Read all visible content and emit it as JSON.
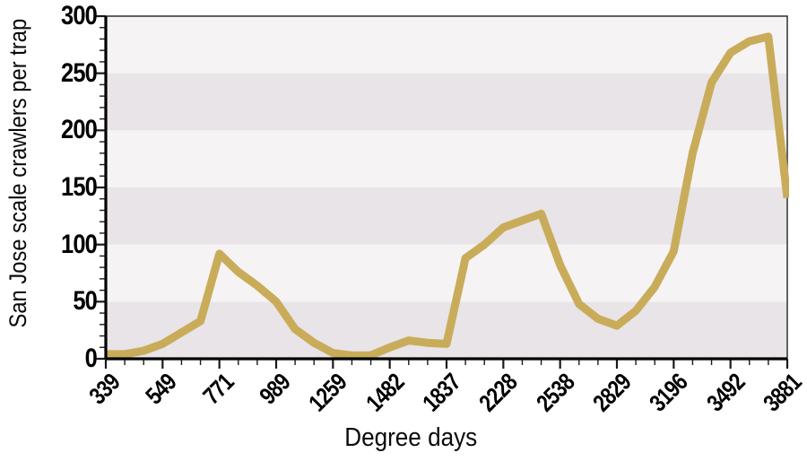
{
  "figure": {
    "y_axis_title": "San Jose scale crawlers per trap",
    "x_axis_title": "Degree days"
  },
  "chart_data": {
    "type": "line",
    "title": "",
    "xlabel": "Degree days",
    "ylabel": "San Jose scale crawlers per trap",
    "x_tick_labels": [
      "339",
      "549",
      "771",
      "989",
      "1259",
      "1482",
      "1837",
      "2228",
      "2538",
      "2829",
      "3196",
      "3492",
      "3881"
    ],
    "y_tick_labels": [
      "0",
      "50",
      "100",
      "150",
      "200",
      "250",
      "300"
    ],
    "ylim": [
      0,
      300
    ],
    "y_major_step": 50,
    "y_minor_step": 10,
    "points_per_label_interval": 3,
    "series": [
      {
        "name": "San Jose scale crawlers per trap",
        "values": [
          4,
          4,
          7,
          13,
          23,
          33,
          92,
          76,
          64,
          50,
          26,
          14,
          5,
          3,
          3,
          10,
          16,
          14,
          13,
          88,
          100,
          115,
          121,
          127,
          82,
          48,
          35,
          29,
          42,
          63,
          94,
          180,
          242,
          268,
          278,
          282,
          141
        ]
      }
    ],
    "values_at_labeled_ticks": {
      "339": 4,
      "549": 13,
      "771": 92,
      "989": 50,
      "1259": 5,
      "1482": 10,
      "1837": 13,
      "2228": 115,
      "2538": 82,
      "2829": 29,
      "3196": 94,
      "3492": 268,
      "3881": 141
    },
    "legend": "none",
    "grid": "horizontal-bands",
    "band_color_dark": "#e8e4e8",
    "band_color_light": "#f6f3f5",
    "line_color": "#c9ac59",
    "line_width": 9,
    "axis_color": "#000000",
    "border_color": "#3c3c3c",
    "tick_color": "#1a1a1a"
  }
}
